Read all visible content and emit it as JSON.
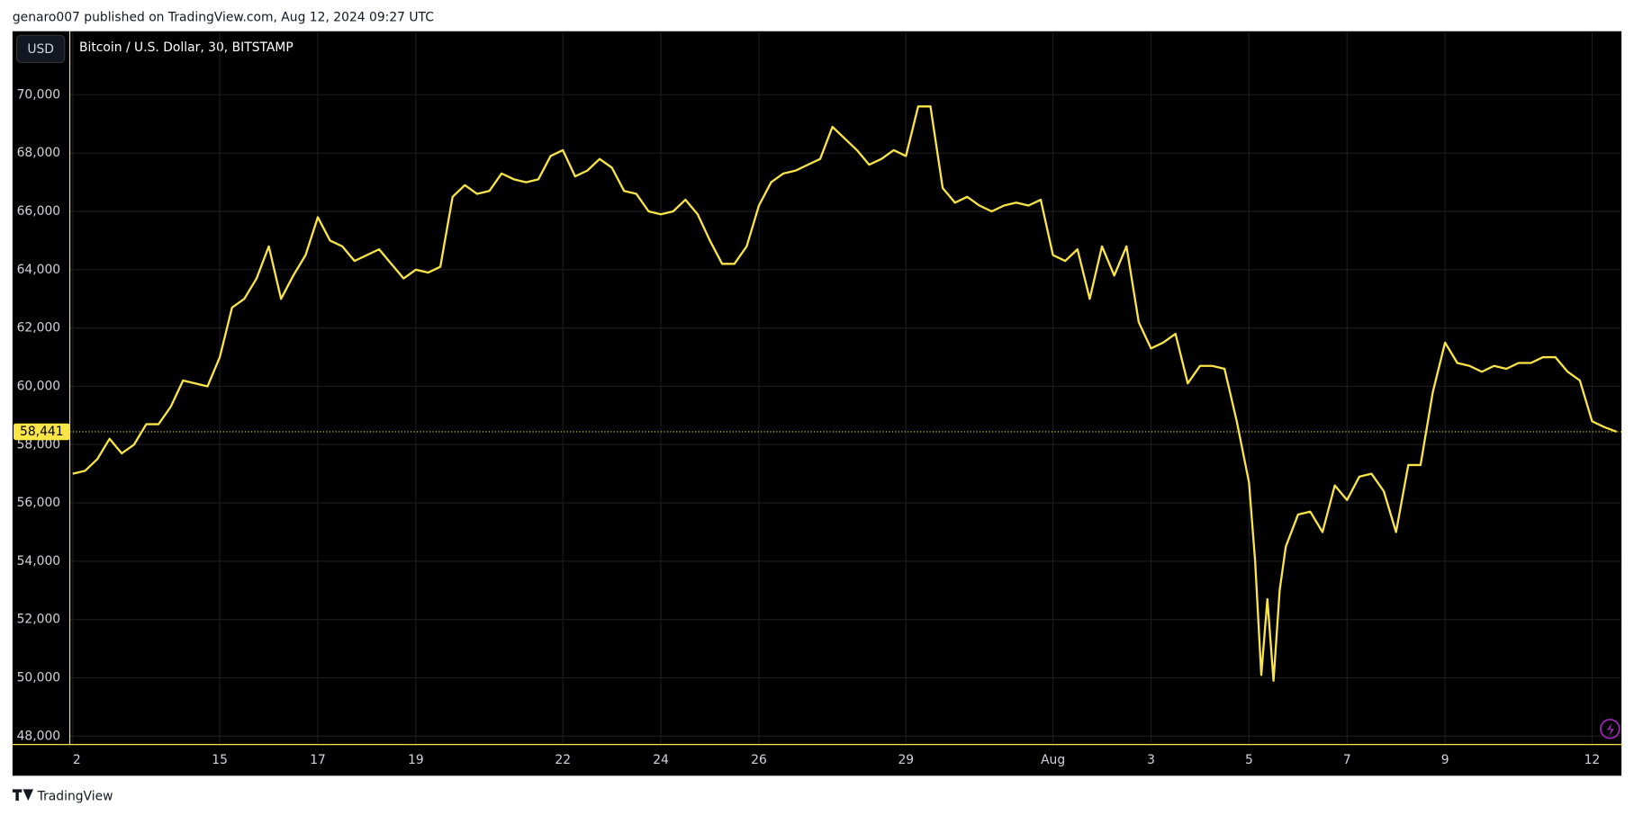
{
  "header": "genaro007 published on TradingView.com, Aug 12, 2024 09:27 UTC",
  "footer": "TradingView",
  "chart_data": {
    "type": "line",
    "title": "Bitcoin / U.S. Dollar, 30, BITSTAMP",
    "currency": "USD",
    "x": [
      0,
      0.25,
      0.5,
      0.75,
      1,
      1.25,
      1.5,
      1.75,
      2,
      2.25,
      2.5,
      2.75,
      3,
      3.25,
      3.5,
      3.75,
      4,
      4.25,
      4.5,
      4.75,
      5,
      5.25,
      5.5,
      5.75,
      6,
      6.25,
      6.5,
      6.75,
      7,
      7.25,
      7.5,
      7.75,
      8,
      8.25,
      8.5,
      8.75,
      9,
      9.25,
      9.5,
      9.75,
      10,
      10.25,
      10.5,
      10.75,
      11,
      11.25,
      11.5,
      11.75,
      12,
      12.25,
      12.5,
      12.75,
      13,
      13.25,
      13.5,
      13.75,
      14,
      14.25,
      14.5,
      14.75,
      15,
      15.25,
      15.5,
      15.75,
      16,
      16.25,
      16.5,
      16.75,
      17,
      17.25,
      17.5,
      17.75,
      18,
      18.25,
      18.5,
      18.75,
      19,
      19.25,
      19.5,
      19.75,
      20,
      20.25,
      20.5,
      20.75,
      21,
      21.25,
      21.5,
      21.75,
      22,
      22.25,
      22.5,
      22.75,
      23,
      23.25,
      23.5,
      23.75,
      24,
      24.125,
      24.25,
      24.375,
      24.5,
      24.625,
      24.75,
      25,
      25.25,
      25.5,
      25.75,
      26,
      26.25,
      26.5,
      26.75,
      27,
      27.25,
      27.5,
      27.75,
      28,
      28.25,
      28.5,
      28.75,
      29,
      29.25,
      29.5,
      29.75,
      30,
      30.25,
      30.5,
      30.75,
      31,
      31.25,
      31.5
    ],
    "series": [
      {
        "name": "BTCUSD",
        "color": "#f9e547",
        "values": [
          57000,
          57100,
          57500,
          58200,
          57700,
          58000,
          58700,
          58700,
          59300,
          60200,
          60100,
          60000,
          61000,
          62700,
          63000,
          63700,
          64800,
          63000,
          63800,
          64500,
          65800,
          65000,
          64800,
          64300,
          64500,
          64700,
          64200,
          63700,
          64000,
          63900,
          64100,
          66500,
          66900,
          66600,
          66700,
          67300,
          67100,
          67000,
          67100,
          67900,
          68100,
          67200,
          67400,
          67800,
          67500,
          66700,
          66600,
          66000,
          65900,
          66000,
          66400,
          65900,
          65000,
          64200,
          64200,
          64800,
          66200,
          67000,
          67300,
          67400,
          67600,
          67800,
          68900,
          68500,
          68100,
          67600,
          67800,
          68100,
          67900,
          69600,
          69600,
          66800,
          66300,
          66500,
          66200,
          66000,
          66200,
          66300,
          66200,
          66400,
          64500,
          64300,
          64700,
          63000,
          64800,
          63800,
          64800,
          62200,
          61300,
          61500,
          61800,
          60100,
          60700,
          60700,
          60600,
          58800,
          56700,
          54000,
          50100,
          52700,
          49900,
          53000,
          54500,
          55600,
          55700,
          55000,
          56600,
          56100,
          56900,
          57000,
          56400,
          55000,
          57300,
          57300,
          59800,
          61500,
          60800,
          60700,
          60500,
          60700,
          60600,
          60800,
          60800,
          61000,
          61000,
          60500,
          60200,
          58800,
          58600,
          58441
        ]
      }
    ],
    "last_price": {
      "value": 58441,
      "label": "58,441"
    },
    "xlim": [
      -0.06,
      31.6
    ],
    "xticks": [
      {
        "value": 0,
        "label": "2"
      },
      {
        "value": 3,
        "label": "15"
      },
      {
        "value": 5,
        "label": "17"
      },
      {
        "value": 7,
        "label": "19"
      },
      {
        "value": 10,
        "label": "22"
      },
      {
        "value": 12,
        "label": "24"
      },
      {
        "value": 14,
        "label": "26"
      },
      {
        "value": 17,
        "label": "29"
      },
      {
        "value": 20,
        "label": "Aug"
      },
      {
        "value": 22,
        "label": "3"
      },
      {
        "value": 24,
        "label": "5"
      },
      {
        "value": 26,
        "label": "7"
      },
      {
        "value": 28,
        "label": "9"
      },
      {
        "value": 31,
        "label": "12"
      }
    ],
    "ylim": [
      47714,
      72179
    ],
    "yticks": [
      {
        "value": 48000,
        "label": "48,000"
      },
      {
        "value": 50000,
        "label": "50,000"
      },
      {
        "value": 52000,
        "label": "52,000"
      },
      {
        "value": 54000,
        "label": "54,000"
      },
      {
        "value": 56000,
        "label": "56,000"
      },
      {
        "value": 58000,
        "label": "58,000"
      },
      {
        "value": 60000,
        "label": "60,000"
      },
      {
        "value": 62000,
        "label": "62,000"
      },
      {
        "value": 64000,
        "label": "64,000"
      },
      {
        "value": 66000,
        "label": "66,000"
      },
      {
        "value": 68000,
        "label": "68,000"
      },
      {
        "value": 70000,
        "label": "70,000"
      }
    ],
    "grid": true
  }
}
